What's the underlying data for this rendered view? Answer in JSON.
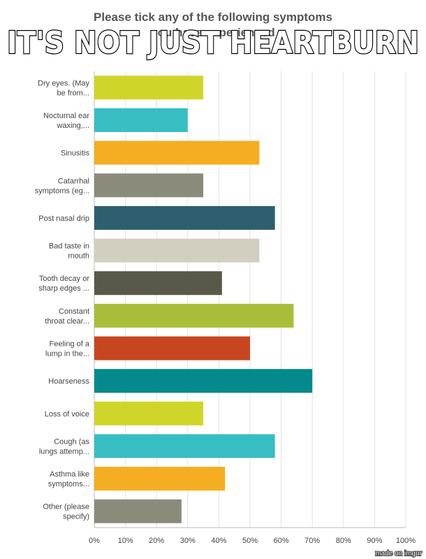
{
  "chart_data": {
    "type": "bar",
    "orientation": "horizontal",
    "title": [
      "Please tick any of the following symptoms",
      "you have experienced"
    ],
    "categories": [
      [
        "Dry eyes. (May",
        "be from..."
      ],
      [
        "Nocturnal ear",
        "waxing,..."
      ],
      [
        "Sinusitis"
      ],
      [
        "Catarrhal",
        "symptoms (eg..."
      ],
      [
        "Post nasal drip"
      ],
      [
        "Bad taste in",
        "mouth"
      ],
      [
        "Tooth decay or",
        "sharp edges ..."
      ],
      [
        "Constant",
        "throat clear..."
      ],
      [
        "Feeling of a",
        "lump in the..."
      ],
      [
        "Hoarseness"
      ],
      [
        "Loss of voice"
      ],
      [
        "Cough (as",
        "lungs attemp..."
      ],
      [
        "Asthma like",
        "symptoms..."
      ],
      [
        "Other (please",
        "specify)"
      ]
    ],
    "values": [
      35,
      30,
      53,
      35,
      58,
      53,
      41,
      64,
      50,
      70,
      35,
      58,
      42,
      28
    ],
    "colors": [
      "#d0d52a",
      "#37bec2",
      "#f5ae21",
      "#8b8b7b",
      "#2e5f6e",
      "#d2cfc1",
      "#5a5949",
      "#aabd3a",
      "#c8461f",
      "#048a8b",
      "#d0d52a",
      "#37bec2",
      "#f5ae21",
      "#8b8b7b"
    ],
    "xlim": [
      0,
      100
    ],
    "xticks": [
      {
        "value": 0,
        "label": "0%"
      },
      {
        "value": 10,
        "label": "10%"
      },
      {
        "value": 20,
        "label": "20%"
      },
      {
        "value": 30,
        "label": "30%"
      },
      {
        "value": 40,
        "label": "40%"
      },
      {
        "value": 50,
        "label": "50%"
      },
      {
        "value": 60,
        "label": "60%"
      },
      {
        "value": 70,
        "label": "70%"
      },
      {
        "value": 80,
        "label": "80%"
      },
      {
        "value": 90,
        "label": "90%"
      },
      {
        "value": 100,
        "label": "100%"
      }
    ],
    "grid": true
  },
  "caption": "IT'S NOT JUST HEARTBURN",
  "watermark": "made on imgur"
}
